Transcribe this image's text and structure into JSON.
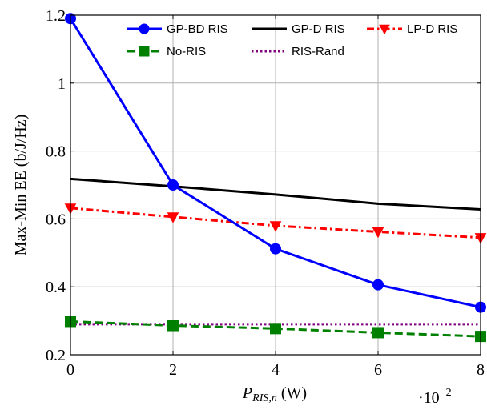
{
  "chart_data": {
    "type": "line",
    "x": [
      0,
      2,
      4,
      6,
      8
    ],
    "x_tick_labels": [
      "0",
      "2",
      "4",
      "6",
      "8"
    ],
    "x_multiplier": "·10",
    "x_multiplier_exp": "−2",
    "y_tick_labels": [
      "0.2",
      "0.4",
      "0.6",
      "0.8",
      "1",
      "1.2"
    ],
    "y_ticks": [
      0.2,
      0.4,
      0.6,
      0.8,
      1.0,
      1.2
    ],
    "xlim": [
      0,
      8
    ],
    "ylim": [
      0.2,
      1.2
    ],
    "xlabel_main": "P",
    "xlabel_sub": "RIS,n",
    "xlabel_unit": " (W)",
    "ylabel": "Max-Min EE (b/J/Hz)",
    "grid": true,
    "legend_position": "top",
    "series": [
      {
        "name": "GP-BD RIS",
        "color": "#0000ff",
        "dash": "solid",
        "marker": "circle",
        "values": [
          1.19,
          0.7,
          0.512,
          0.406,
          0.34
        ]
      },
      {
        "name": "GP-D RIS",
        "color": "#000000",
        "dash": "solid",
        "marker": "none",
        "values": [
          0.718,
          0.696,
          0.672,
          0.645,
          0.628
        ]
      },
      {
        "name": "LP-D RIS",
        "color": "#ff0000",
        "dash": "dashdot",
        "marker": "triangle-down",
        "values": [
          0.632,
          0.606,
          0.58,
          0.562,
          0.545
        ]
      },
      {
        "name": "No-RIS",
        "color": "#008000",
        "dash": "dashed",
        "marker": "square",
        "values": [
          0.298,
          0.286,
          0.277,
          0.265,
          0.254
        ]
      },
      {
        "name": "RIS-Rand",
        "color": "#800080",
        "dash": "dotted",
        "marker": "none",
        "values": [
          0.29,
          0.29,
          0.29,
          0.29,
          0.29
        ]
      }
    ]
  }
}
